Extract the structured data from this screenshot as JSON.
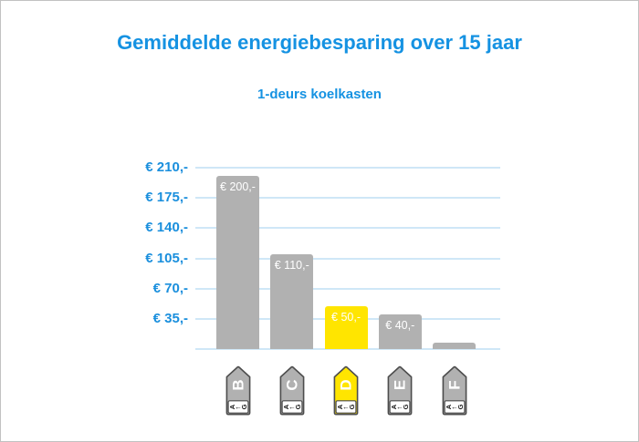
{
  "title": "Gemiddelde energiebesparing over 15 jaar",
  "subtitle": "1-deurs koelkasten",
  "chart_data": {
    "type": "bar",
    "categories": [
      "B",
      "C",
      "D",
      "E",
      "F"
    ],
    "values": [
      200,
      110,
      50,
      40,
      7
    ],
    "bar_labels": [
      "€ 200,-",
      "€ 110,-",
      "€ 50,-",
      "€ 40,-",
      ""
    ],
    "highlight_category": "D",
    "title": "Gemiddelde energiebesparing over 15 jaar",
    "subtitle": "1-deurs koelkasten",
    "xlabel": "",
    "ylabel": "",
    "ylim": [
      0,
      210
    ],
    "grid": "horizontal",
    "legend": "none",
    "y_ticks": [
      {
        "value": 210,
        "label": "€ 210,-"
      },
      {
        "value": 175,
        "label": "€ 175,-"
      },
      {
        "value": 140,
        "label": "€ 140,-"
      },
      {
        "value": 105,
        "label": "€ 105,-"
      },
      {
        "value": 70,
        "label": "€ 70,-"
      },
      {
        "value": 35,
        "label": "€ 35,-"
      }
    ],
    "x_axis_icons": {
      "type": "energy-label-tag",
      "scale_top": "A",
      "scale_arrow": "←",
      "scale_bottom": "G"
    }
  },
  "colors": {
    "title_blue": "#1592e2",
    "axis_label_blue": "#1a8fdd",
    "gridline": "#cfe7f7",
    "bar_gray": "#b1b1b1",
    "bar_highlight_yellow": "#ffe500",
    "bar_label_text": "#ffffff",
    "tag_border": "#4d4d4d",
    "tag_letter_text": "#ffffff",
    "tag_scale_text": "#1a1a1a",
    "frame_border": "#c2c2c2",
    "background": "#ffffff"
  }
}
